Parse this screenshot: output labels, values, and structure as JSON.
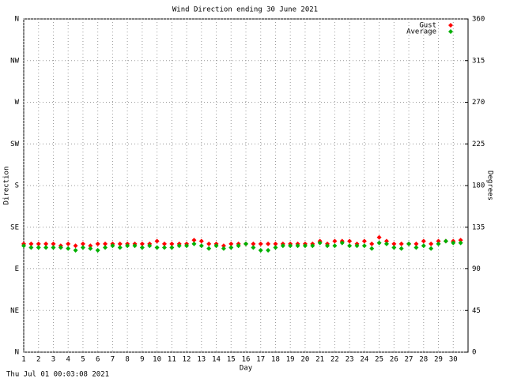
{
  "chart_data": {
    "type": "scatter",
    "title": "Wind Direction ending 30 June 2021",
    "x_label": "Day",
    "y_label": "Direction",
    "y2_label": "Degrees",
    "timestamp": "Thu Jul 01 00:03:08 2021",
    "xlim": [
      1,
      31
    ],
    "xticks": [
      1,
      2,
      3,
      4,
      5,
      6,
      7,
      8,
      9,
      10,
      11,
      12,
      13,
      14,
      15,
      16,
      17,
      18,
      19,
      20,
      21,
      22,
      23,
      24,
      25,
      26,
      27,
      28,
      29,
      30
    ],
    "ylim": [
      0,
      360
    ],
    "yticks": [
      {
        "value": 0,
        "label": "N"
      },
      {
        "value": 45,
        "label": "NE"
      },
      {
        "value": 90,
        "label": "E"
      },
      {
        "value": 135,
        "label": "SE"
      },
      {
        "value": 180,
        "label": "S"
      },
      {
        "value": 225,
        "label": "SW"
      },
      {
        "value": 270,
        "label": "W"
      },
      {
        "value": 315,
        "label": "NW"
      },
      {
        "value": 360,
        "label": "N"
      }
    ],
    "y2lim": [
      0,
      360
    ],
    "y2ticks": [
      0,
      45,
      90,
      135,
      180,
      225,
      270,
      315,
      360
    ],
    "grid": true,
    "legend": "top-right",
    "x": [
      1,
      1.5,
      2,
      2.5,
      3,
      3.5,
      4,
      4.5,
      5,
      5.5,
      6,
      6.5,
      7,
      7.5,
      8,
      8.5,
      9,
      9.5,
      10,
      10.5,
      11,
      11.5,
      12,
      12.5,
      13,
      13.5,
      14,
      14.5,
      15,
      15.5,
      16,
      16.5,
      17,
      17.5,
      18,
      18.5,
      19,
      19.5,
      20,
      20.5,
      21,
      21.5,
      22,
      22.5,
      23,
      23.5,
      24,
      24.5,
      25,
      25.5,
      26,
      26.5,
      27,
      27.5,
      28,
      28.5,
      29,
      29.5,
      30,
      30.5
    ],
    "series": [
      {
        "name": "Gust",
        "color": "#ff0000",
        "values": [
          117,
          117,
          117,
          117,
          117,
          115,
          117,
          115,
          117,
          115,
          117,
          117,
          117,
          117,
          117,
          117,
          117,
          117,
          120,
          117,
          117,
          117,
          117,
          121,
          120,
          117,
          117,
          115,
          117,
          117,
          117,
          117,
          117,
          117,
          117,
          117,
          117,
          117,
          117,
          117,
          120,
          117,
          120,
          120,
          120,
          117,
          120,
          117,
          124,
          120,
          117,
          117,
          117,
          117,
          120,
          117,
          120,
          120,
          120,
          121
        ]
      },
      {
        "name": "Average",
        "color": "#00b000",
        "values": [
          115,
          113,
          113,
          113,
          113,
          113,
          112,
          110,
          113,
          112,
          110,
          113,
          115,
          113,
          115,
          115,
          113,
          115,
          113,
          113,
          113,
          115,
          115,
          117,
          115,
          112,
          115,
          112,
          113,
          115,
          117,
          113,
          110,
          110,
          113,
          115,
          115,
          115,
          115,
          115,
          118,
          115,
          115,
          118,
          115,
          115,
          115,
          112,
          118,
          117,
          113,
          112,
          117,
          113,
          115,
          112,
          117,
          120,
          118,
          118
        ]
      }
    ]
  }
}
